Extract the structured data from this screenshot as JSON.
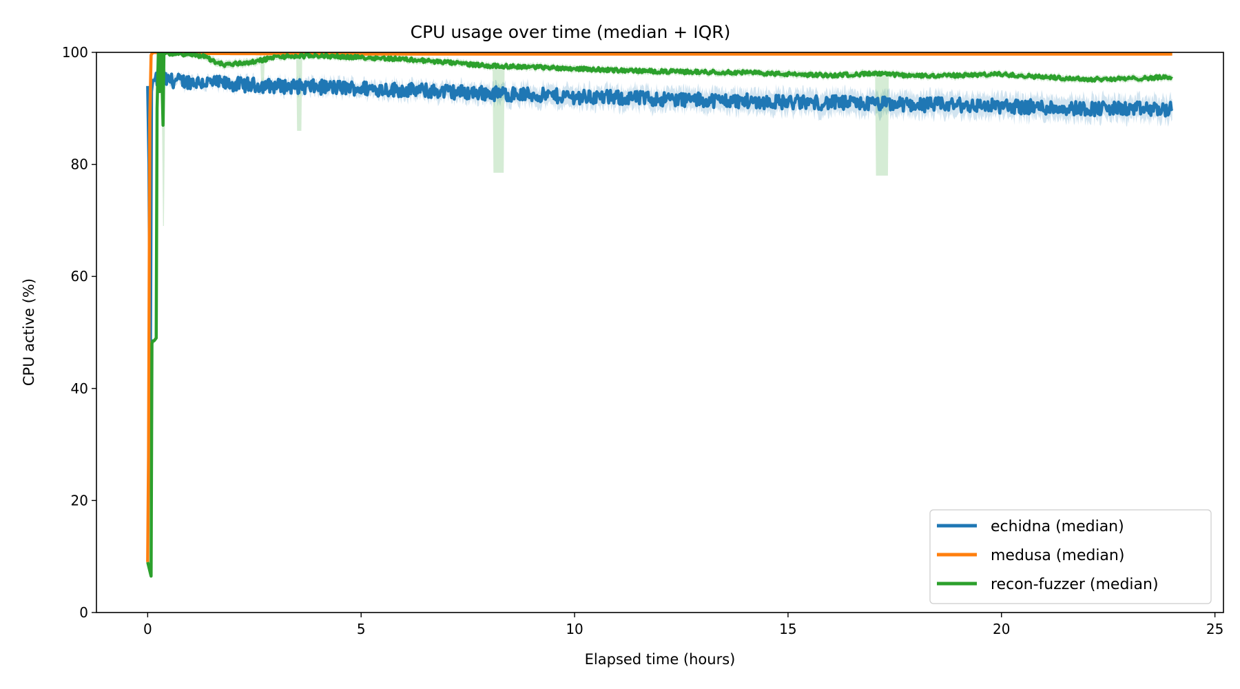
{
  "chart_data": {
    "type": "line",
    "title": "CPU usage over time (median + IQR)",
    "xlabel": "Elapsed time (hours)",
    "ylabel": "CPU active (%)",
    "xlim": [
      -1.2,
      25.2
    ],
    "ylim": [
      0,
      100
    ],
    "xticks": [
      0,
      5,
      10,
      15,
      20,
      25
    ],
    "yticks": [
      0,
      20,
      40,
      60,
      80,
      100
    ],
    "grid": false,
    "legend_position": "lower-right",
    "series": [
      {
        "name": "echidna (median)",
        "color": "#1f77b4",
        "x": [
          0.0,
          0.03,
          0.06,
          0.09,
          0.12,
          0.16,
          0.25,
          0.5,
          1,
          2,
          3,
          4,
          5,
          6,
          7,
          8,
          9,
          10,
          11,
          12,
          13,
          14,
          15,
          16,
          17,
          18,
          19,
          20,
          21,
          22,
          23,
          24
        ],
        "median": [
          94,
          80,
          37,
          93,
          95,
          95,
          95,
          95,
          94.8,
          94.3,
          94.0,
          93.8,
          93.6,
          93.3,
          93.0,
          92.7,
          92.4,
          92.1,
          91.9,
          91.7,
          91.5,
          91.3,
          91.1,
          91.0,
          90.8,
          90.7,
          90.6,
          90.4,
          90.2,
          90.0,
          89.9,
          89.8
        ],
        "iqr_low": [
          94,
          80,
          37,
          93,
          94.5,
          94.5,
          94.5,
          94.5,
          94.2,
          93.7,
          93.3,
          93.0,
          92.7,
          92.3,
          91.9,
          91.5,
          91.1,
          90.7,
          90.4,
          90.2,
          90.0,
          89.8,
          89.6,
          89.4,
          89.2,
          89.1,
          88.9,
          88.8,
          88.6,
          88.4,
          88.3,
          88.2
        ],
        "iqr_high": [
          94,
          80,
          37,
          93,
          95.5,
          95.5,
          95.5,
          95.5,
          95.3,
          94.9,
          94.7,
          94.6,
          94.4,
          94.2,
          94.0,
          93.8,
          93.6,
          93.4,
          93.3,
          93.1,
          93.0,
          92.8,
          92.7,
          92.6,
          92.4,
          92.3,
          92.2,
          92.0,
          91.8,
          91.6,
          91.5,
          91.4
        ],
        "noise": 1.3
      },
      {
        "name": "medusa (median)",
        "color": "#ff7f0e",
        "x": [
          0.0,
          0.02,
          0.05,
          0.08,
          0.12,
          0.2,
          1,
          5,
          10,
          15,
          20,
          24
        ],
        "median": [
          9,
          28,
          88,
          99.5,
          100,
          100,
          99.8,
          99.7,
          99.7,
          99.7,
          99.7,
          99.7
        ],
        "iqr_low": [
          9,
          28,
          88,
          99.5,
          99.6,
          99.6,
          99.6,
          99.6,
          99.6,
          99.6,
          99.6,
          99.6
        ],
        "iqr_high": [
          9,
          28,
          88,
          99.5,
          100,
          100,
          100,
          100,
          100,
          100,
          100,
          100
        ],
        "noise": 0
      },
      {
        "name": "recon-fuzzer (median)",
        "color": "#2ca02c",
        "x": [
          0.0,
          0.08,
          0.1,
          0.12,
          0.15,
          0.2,
          0.22,
          0.25,
          0.28,
          0.32,
          0.36,
          0.38,
          0.42,
          0.6,
          1.0,
          1.4,
          1.5,
          1.8,
          2.5,
          3.0,
          4.0,
          5.0,
          6.0,
          7.0,
          8.0,
          9.0,
          10.0,
          11.0,
          12.0,
          13.0,
          14.0,
          15.0,
          16.0,
          17.0,
          18.0,
          19.0,
          20.0,
          21.0,
          22.0,
          23.0,
          24.0
        ],
        "median": [
          9,
          6.5,
          48,
          48.5,
          48.5,
          49,
          90,
          100,
          93,
          100,
          87,
          100,
          99.8,
          99.8,
          99.6,
          99.2,
          98.5,
          97.8,
          98.3,
          99.2,
          99.4,
          99.1,
          98.8,
          98.2,
          97.6,
          97.4,
          97.1,
          96.8,
          96.6,
          96.5,
          96.4,
          96.1,
          95.9,
          96.2,
          95.8,
          95.9,
          96.1,
          95.6,
          95.2,
          95.3,
          95.6
        ],
        "iqr_low": [
          9,
          6.5,
          48,
          48.5,
          48.5,
          49,
          90,
          100,
          93,
          100,
          87,
          100,
          99.5,
          99.5,
          99.2,
          98.6,
          97.9,
          97.2,
          97.7,
          98.7,
          98.9,
          98.6,
          98.3,
          97.7,
          97.1,
          96.9,
          96.6,
          96.3,
          96.1,
          96.0,
          95.9,
          95.6,
          95.4,
          95.7,
          95.3,
          95.4,
          95.6,
          95.1,
          94.7,
          94.8,
          95.1
        ],
        "iqr_high": [
          9,
          6.5,
          48,
          48.5,
          48.5,
          49,
          90,
          100,
          93,
          100,
          87,
          100,
          100,
          100,
          100,
          99.7,
          99.1,
          98.4,
          98.9,
          99.7,
          99.9,
          99.6,
          99.3,
          98.7,
          98.1,
          97.9,
          97.6,
          97.3,
          97.1,
          97.0,
          96.9,
          96.6,
          96.4,
          96.7,
          96.3,
          96.4,
          96.6,
          96.1,
          95.7,
          95.8,
          96.1
        ],
        "iqr_dips": [
          {
            "x0": 0.35,
            "x1": 0.38,
            "low": 69
          },
          {
            "x0": 2.65,
            "x1": 2.72,
            "low": 94
          },
          {
            "x0": 3.5,
            "x1": 3.6,
            "low": 86
          },
          {
            "x0": 8.1,
            "x1": 8.35,
            "low": 78.5
          },
          {
            "x0": 17.05,
            "x1": 17.35,
            "low": 78
          }
        ],
        "noise": 0.35
      }
    ]
  }
}
